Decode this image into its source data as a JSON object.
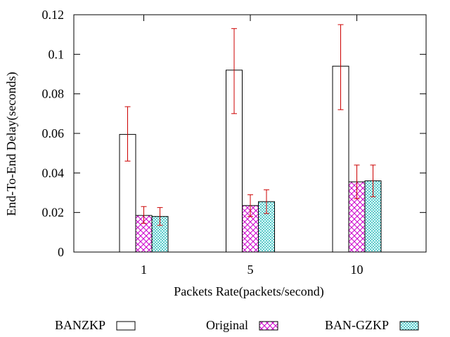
{
  "chart_data": {
    "type": "bar",
    "title": "",
    "xlabel": "Packets Rate(packets/second)",
    "ylabel": "End-To-End Delay(seconds)",
    "categories": [
      "1",
      "5",
      "10"
    ],
    "ylim": [
      0,
      0.12
    ],
    "yticks": [
      "0",
      "0.02",
      "0.04",
      "0.06",
      "0.08",
      "0.1",
      "0.12"
    ],
    "grid": false,
    "legend_position": "bottom",
    "error_bar_color": "#cc0000",
    "series": [
      {
        "name": "BANZKP",
        "pattern": "none",
        "color": "#000000",
        "values": [
          0.0595,
          0.092,
          0.094
        ],
        "error_low": [
          0.046,
          0.07,
          0.072
        ],
        "error_high": [
          0.0735,
          0.113,
          0.115
        ]
      },
      {
        "name": "Original",
        "pattern": "crosshatch",
        "color": "#cc00cc",
        "values": [
          0.0185,
          0.0235,
          0.0355
        ],
        "error_low": [
          0.0145,
          0.018,
          0.027
        ],
        "error_high": [
          0.023,
          0.029,
          0.044
        ]
      },
      {
        "name": "BAN-GZKP",
        "pattern": "dots",
        "color": "#00aaaa",
        "values": [
          0.018,
          0.0255,
          0.036
        ],
        "error_low": [
          0.0135,
          0.0195,
          0.028
        ],
        "error_high": [
          0.0225,
          0.0315,
          0.044
        ]
      }
    ]
  }
}
